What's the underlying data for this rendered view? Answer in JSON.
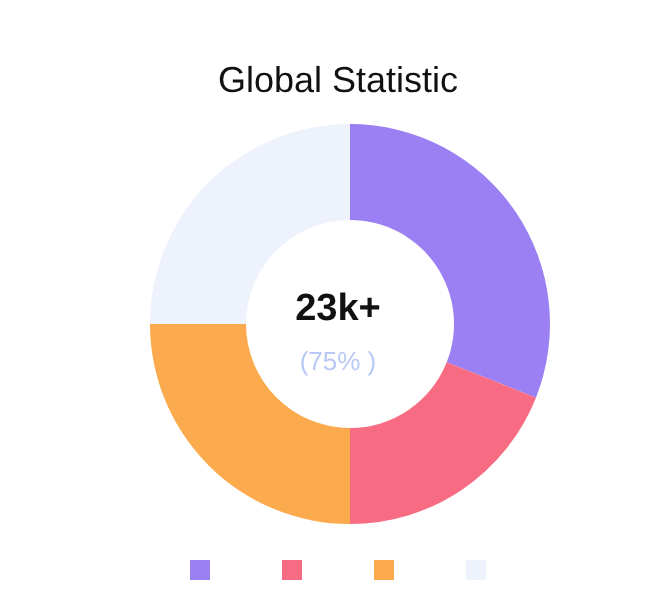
{
  "chart_data": {
    "type": "donut",
    "title": "Global Statistic",
    "categories": [
      null,
      null,
      null,
      null
    ],
    "values": [
      31,
      19,
      25,
      25
    ],
    "colors": [
      "#9b80f3",
      "#f76c82",
      "#fcaa4e",
      "#eef2fd"
    ],
    "annotations": [
      "23k+",
      "(75% )"
    ]
  }
}
